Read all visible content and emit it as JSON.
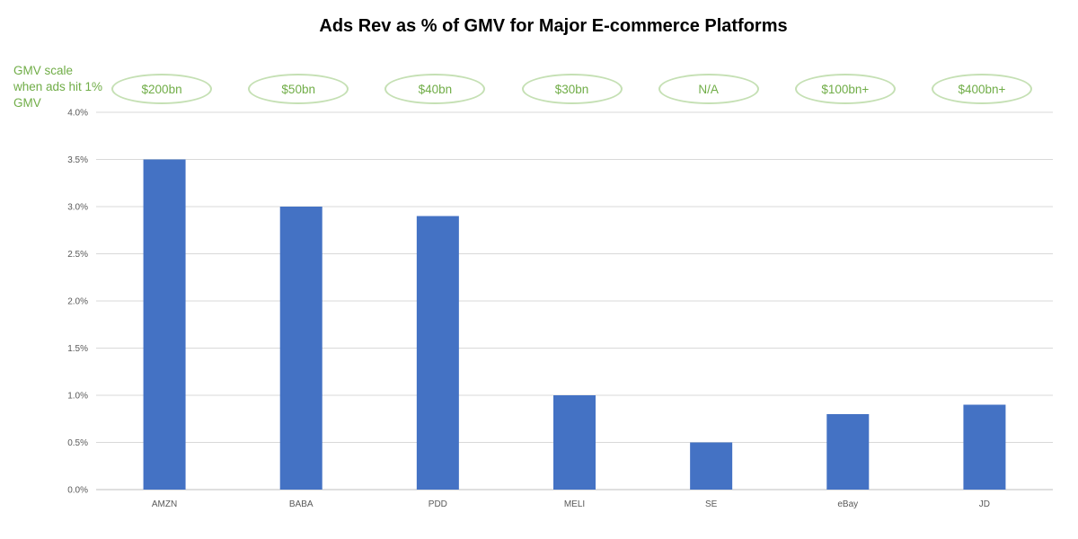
{
  "chart_data": {
    "type": "bar",
    "title": "Ads Rev as % of GMV for Major E-commerce Platforms",
    "xlabel": "",
    "ylabel": "",
    "categories": [
      "AMZN",
      "BABA",
      "PDD",
      "MELI",
      "SE",
      "eBay",
      "JD"
    ],
    "values": [
      0.035,
      0.03,
      0.029,
      0.01,
      0.005,
      0.008,
      0.009
    ],
    "ylim": [
      0,
      0.04
    ],
    "yticks": [
      0,
      0.005,
      0.01,
      0.015,
      0.02,
      0.025,
      0.03,
      0.035,
      0.04
    ],
    "ytick_labels": [
      "0.0%",
      "0.5%",
      "1.0%",
      "1.5%",
      "2.0%",
      "2.5%",
      "3.0%",
      "3.5%",
      "4.0%"
    ],
    "grid": true,
    "bar_color": "#4472c4",
    "annotation_label": "GMV scale when ads hit 1% GMV",
    "annotations": [
      "$200bn",
      "$50bn",
      "$40bn",
      "$30bn",
      "N/A",
      "$100bn+",
      "$400bn+"
    ],
    "annotation_color": "#70ad47",
    "annotation_border_color": "#c5e0b4"
  }
}
